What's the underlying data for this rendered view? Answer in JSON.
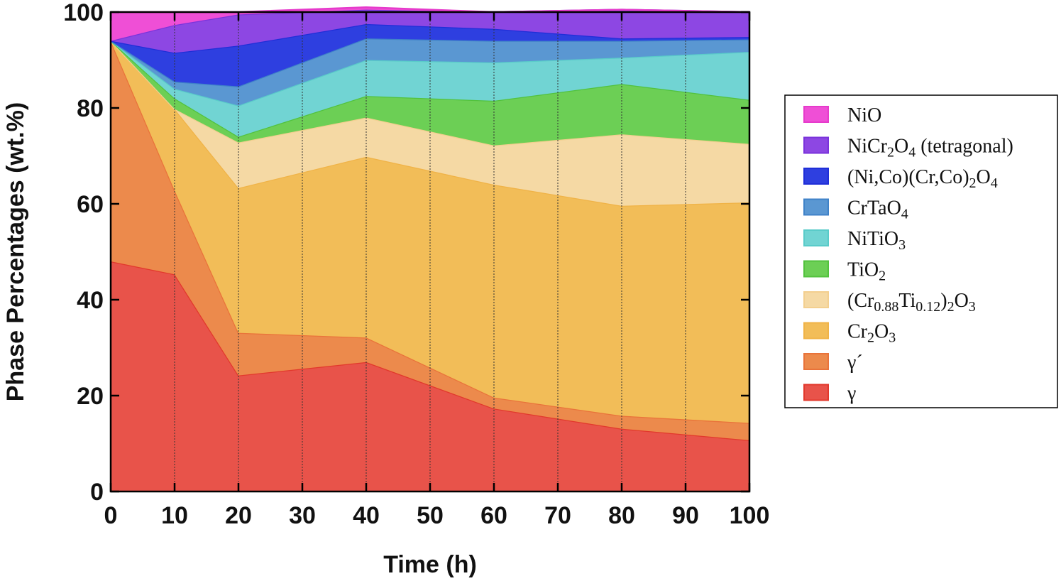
{
  "chart_data": {
    "type": "area",
    "stacked": true,
    "title": "",
    "xlabel": "Time (h)",
    "ylabel": "Phase Percentages (wt.%)",
    "xlim": [
      0,
      100
    ],
    "ylim": [
      0,
      100
    ],
    "xticks": [
      "0",
      "10",
      "20",
      "30",
      "40",
      "50",
      "60",
      "70",
      "80",
      "90",
      "100"
    ],
    "yticks": [
      "0",
      "20",
      "40",
      "60",
      "80",
      "100"
    ],
    "vertical_gridlines_at": [
      10,
      20,
      30,
      40,
      50,
      60,
      70,
      80,
      90
    ],
    "legend_position": "right",
    "x": [
      0,
      10,
      20,
      40,
      60,
      80,
      100
    ],
    "series": [
      {
        "name": "γ",
        "name_parts": [
          [
            "γ",
            ""
          ]
        ],
        "color": "#e8534a",
        "edge": "#e2382c",
        "values": [
          48,
          45.3,
          24.2,
          27,
          17.3,
          13.1,
          10.7
        ]
      },
      {
        "name": "γ´",
        "name_parts": [
          [
            "γ´",
            ""
          ]
        ],
        "color": "#ec8a4c",
        "edge": "#e9733a",
        "values": [
          46,
          17.5,
          8.9,
          5.1,
          2.3,
          2.7,
          3.6
        ]
      },
      {
        "name": "Cr2O3",
        "name_parts": [
          [
            "Cr",
            ""
          ],
          [
            "2",
            "sub"
          ],
          [
            "O",
            ""
          ],
          [
            "3",
            "sub"
          ]
        ],
        "color": "#f2bd58",
        "edge": "#f0b347",
        "values": [
          0,
          17,
          30.2,
          37.7,
          44.4,
          43.8,
          46
        ]
      },
      {
        "name": "(Cr0.88Ti0.12)2O3",
        "name_parts": [
          [
            "(Cr",
            ""
          ],
          [
            "0.88",
            "sub"
          ],
          [
            "Ti",
            ""
          ],
          [
            "0.12",
            "sub"
          ],
          [
            ")",
            ""
          ],
          [
            "2",
            "sub"
          ],
          [
            "O",
            ""
          ],
          [
            "3",
            "sub"
          ]
        ],
        "color": "#f5d9a4",
        "edge": "#f3cf8f",
        "values": [
          0,
          0,
          9.5,
          8.2,
          8.2,
          14.9,
          12.2
        ]
      },
      {
        "name": "TiO2",
        "name_parts": [
          [
            "TiO",
            ""
          ],
          [
            "2",
            "sub"
          ]
        ],
        "color": "#6ccf55",
        "edge": "#52c23d",
        "values": [
          0,
          2.2,
          1.2,
          4.5,
          9.3,
          10.5,
          9.2
        ]
      },
      {
        "name": "NiTiO3",
        "name_parts": [
          [
            "NiTiO",
            ""
          ],
          [
            "3",
            "sub"
          ]
        ],
        "color": "#71d4d3",
        "edge": "#59cbc9",
        "values": [
          0,
          2,
          6.5,
          7.5,
          8,
          5.5,
          10
        ]
      },
      {
        "name": "CrTaO4",
        "name_parts": [
          [
            "CrTaO",
            ""
          ],
          [
            "4",
            "sub"
          ]
        ],
        "color": "#5a97d2",
        "edge": "#3f82c8",
        "values": [
          0,
          1.5,
          4,
          4.5,
          4.5,
          3.5,
          2.6
        ]
      },
      {
        "name": "(Ni,Co)(Cr,Co)2O4",
        "name_parts": [
          [
            "(Ni,Co)(Cr,Co)",
            ""
          ],
          [
            "2",
            "sub"
          ],
          [
            "O",
            ""
          ],
          [
            "4",
            "sub"
          ]
        ],
        "color": "#2e3fe0",
        "edge": "#1f2ed8",
        "values": [
          0,
          6,
          8.5,
          3,
          2.5,
          0.5,
          0.5
        ]
      },
      {
        "name": "NiCr2O4 (tetragonal)",
        "name_parts": [
          [
            "NiCr",
            ""
          ],
          [
            "2",
            "sub"
          ],
          [
            "O",
            ""
          ],
          [
            "4",
            "sub"
          ],
          [
            " (tetragonal)",
            ""
          ]
        ],
        "color": "#8d47e3",
        "edge": "#7a33db",
        "values": [
          0,
          5.8,
          6.5,
          3,
          3.5,
          6,
          5.2
        ]
      },
      {
        "name": "NiO",
        "name_parts": [
          [
            "NiO",
            ""
          ]
        ],
        "color": "#ef4fd6",
        "edge": "#e63acb",
        "values": [
          6,
          2.7,
          0.5,
          0.5,
          0,
          0,
          0
        ]
      }
    ]
  }
}
